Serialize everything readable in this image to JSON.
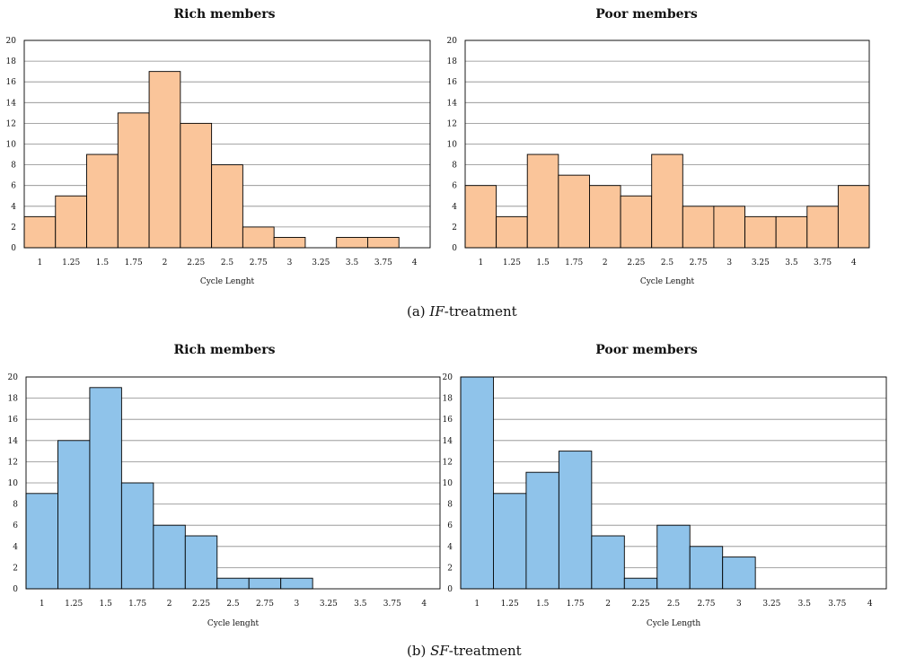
{
  "colors": {
    "orange": "#FAC59A",
    "blue": "#8FC3EA",
    "stroke": "#000000",
    "grid": "#8a8a8a"
  },
  "captions": {
    "a": {
      "prefix": "(a) ",
      "italic": "IF",
      "suffix": "-treatment"
    },
    "b": {
      "prefix": "(b) ",
      "italic": "SF",
      "suffix": "-treatment"
    }
  },
  "chart_data": [
    {
      "type": "bar",
      "title": "Rich members",
      "xlabel": "Cycle Lenght",
      "ylabel": "",
      "ylim": [
        0,
        20
      ],
      "yticks": [
        "0",
        "2",
        "4",
        "6",
        "8",
        "10",
        "12",
        "14",
        "16",
        "18",
        "20"
      ],
      "categories": [
        "1",
        "1.25",
        "1.5",
        "1.75",
        "2",
        "2.25",
        "2.5",
        "2.75",
        "3",
        "3.25",
        "3.5",
        "3.75",
        "4"
      ],
      "values": [
        3,
        5,
        9,
        13,
        17,
        12,
        8,
        2,
        1,
        0,
        1,
        1,
        0
      ],
      "color": "orange"
    },
    {
      "type": "bar",
      "title": "Poor members",
      "xlabel": "Cycle Lenght",
      "ylabel": "",
      "ylim": [
        0,
        20
      ],
      "yticks": [
        "0",
        "2",
        "4",
        "6",
        "8",
        "10",
        "12",
        "14",
        "16",
        "18",
        "20"
      ],
      "categories": [
        "1",
        "1.25",
        "1.5",
        "1.75",
        "2",
        "2.25",
        "2.5",
        "2.75",
        "3",
        "3.25",
        "3.5",
        "3.75",
        "4"
      ],
      "values": [
        6,
        3,
        9,
        7,
        6,
        5,
        9,
        4,
        4,
        3,
        3,
        4,
        6
      ],
      "color": "orange"
    },
    {
      "type": "bar",
      "title": "Rich members",
      "xlabel": "Cycle lenght",
      "ylabel": "",
      "ylim": [
        0,
        20
      ],
      "yticks": [
        "0",
        "2",
        "4",
        "6",
        "8",
        "10",
        "12",
        "14",
        "16",
        "18",
        "20"
      ],
      "categories": [
        "1",
        "1.25",
        "1.5",
        "1.75",
        "2",
        "2.25",
        "2.5",
        "2.75",
        "3",
        "3.25",
        "3.5",
        "3.75",
        "4"
      ],
      "values": [
        9,
        14,
        19,
        10,
        6,
        5,
        1,
        1,
        1,
        0,
        0,
        0,
        0
      ],
      "color": "blue"
    },
    {
      "type": "bar",
      "title": "Poor members",
      "xlabel": "Cycle Length",
      "ylabel": "",
      "ylim": [
        0,
        20
      ],
      "yticks": [
        "0",
        "2",
        "4",
        "6",
        "8",
        "10",
        "12",
        "14",
        "16",
        "18",
        "20"
      ],
      "categories": [
        "1",
        "1.25",
        "1.5",
        "1.75",
        "2",
        "2.25",
        "2.5",
        "2.75",
        "3",
        "3.25",
        "3.5",
        "3.75",
        "4"
      ],
      "values": [
        20,
        9,
        11,
        13,
        5,
        1,
        6,
        4,
        3,
        0,
        0,
        0,
        0
      ],
      "color": "blue"
    }
  ]
}
